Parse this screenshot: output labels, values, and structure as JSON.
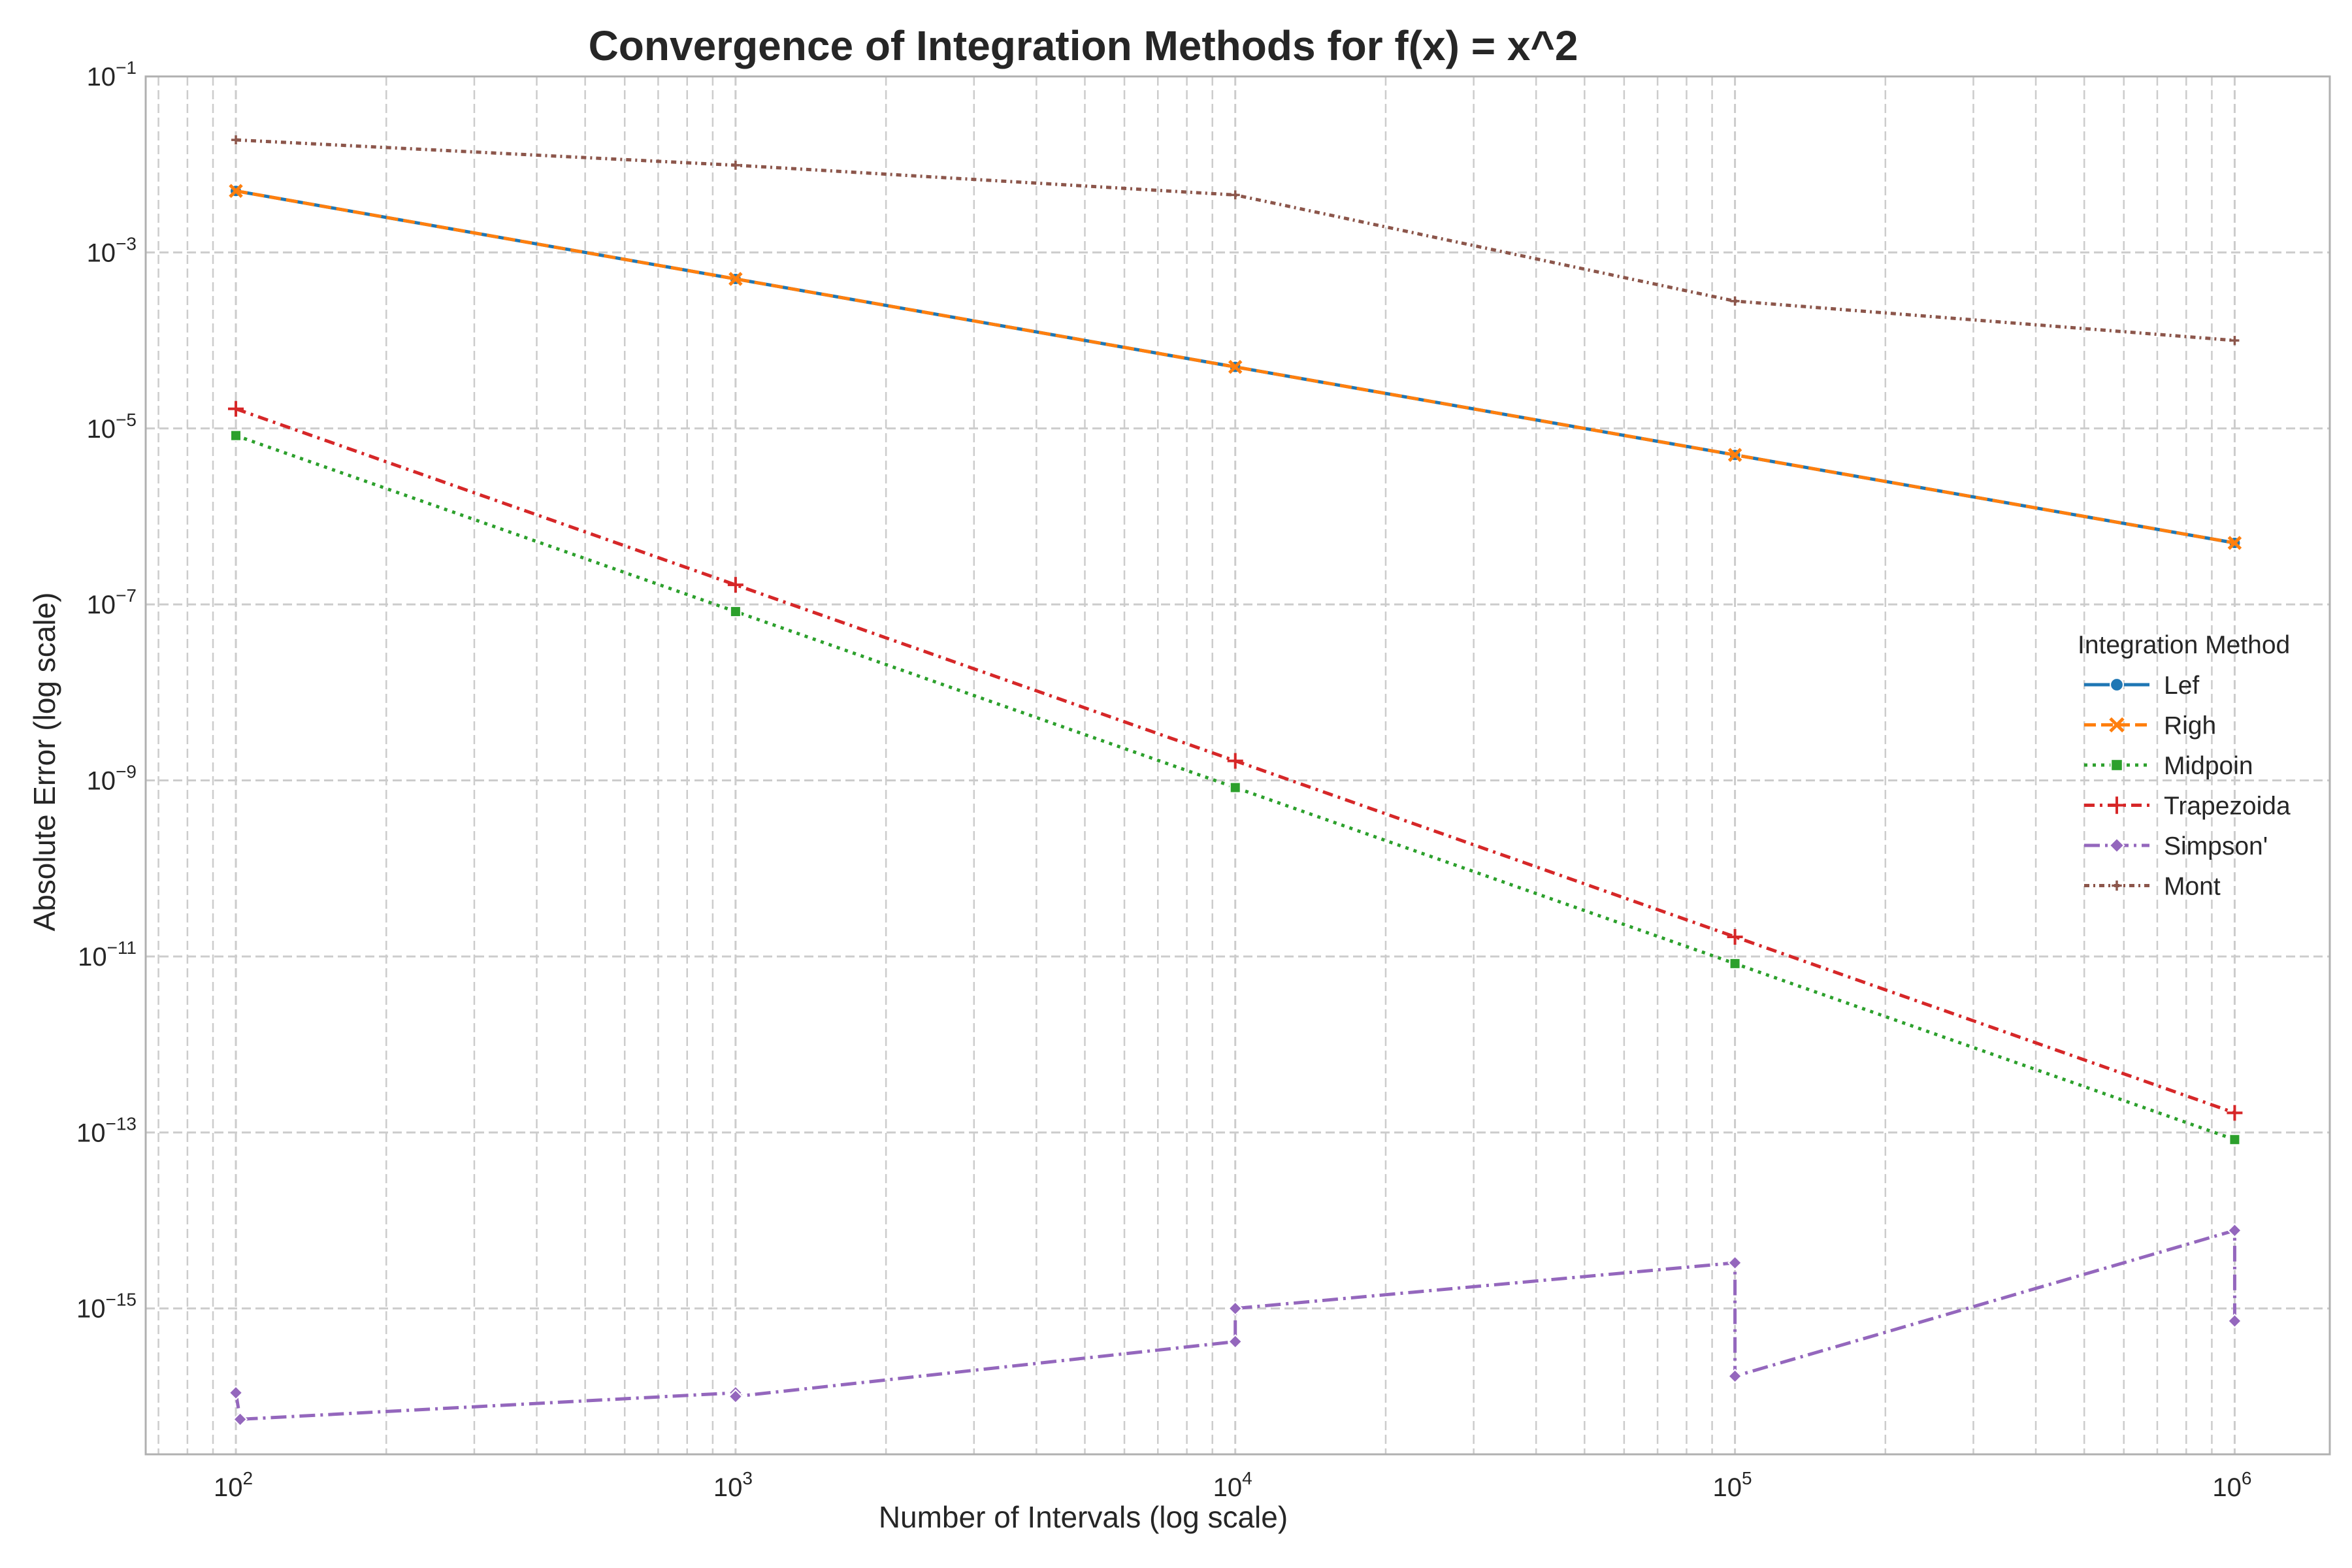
{
  "chart_data": {
    "type": "line",
    "title": "Convergence of Integration Methods for f(x) = x^2",
    "xlabel": "Number of Intervals (log scale)",
    "ylabel": "Absolute Error (log scale)",
    "x_scale": "log",
    "y_scale": "log",
    "xlim": [
      66,
      1550000
    ],
    "ylim": [
      2.2e-17,
      0.1
    ],
    "x_ticks": [
      {
        "value": 100,
        "base": "10",
        "exp": "2"
      },
      {
        "value": 1000,
        "base": "10",
        "exp": "3"
      },
      {
        "value": 10000,
        "base": "10",
        "exp": "4"
      },
      {
        "value": 100000,
        "base": "10",
        "exp": "5"
      },
      {
        "value": 1000000,
        "base": "10",
        "exp": "6"
      }
    ],
    "y_ticks": [
      {
        "value": 1e-15,
        "base": "10",
        "exp": "−15"
      },
      {
        "value": 1e-13,
        "base": "10",
        "exp": "−13"
      },
      {
        "value": 1e-11,
        "base": "10",
        "exp": "−11"
      },
      {
        "value": 1e-09,
        "base": "10",
        "exp": "−9"
      },
      {
        "value": 1e-07,
        "base": "10",
        "exp": "−7"
      },
      {
        "value": 1e-05,
        "base": "10",
        "exp": "−5"
      },
      {
        "value": 0.001,
        "base": "10",
        "exp": "−3"
      },
      {
        "value": 0.1,
        "base": "10",
        "exp": "−1"
      }
    ],
    "grid": true,
    "legend": {
      "title": "Integration Method",
      "position": "center-right"
    },
    "series": [
      {
        "name": "Lef",
        "color": "#1f77b4",
        "dash": "solid",
        "marker": "circle",
        "points": [
          [
            100,
            0.005
          ],
          [
            1000,
            0.0005
          ],
          [
            10000,
            5e-05
          ],
          [
            100000,
            5e-06
          ],
          [
            1000000,
            5e-07
          ]
        ]
      },
      {
        "name": "Righ",
        "color": "#ff7f0e",
        "dash": "dashed",
        "marker": "x",
        "points": [
          [
            100,
            0.005
          ],
          [
            1000,
            0.0005
          ],
          [
            10000,
            5e-05
          ],
          [
            100000,
            5e-06
          ],
          [
            1000000,
            5e-07
          ]
        ]
      },
      {
        "name": "Midpoin",
        "color": "#2ca02c",
        "dash": "dotted",
        "marker": "square",
        "points": [
          [
            100,
            8.3e-06
          ],
          [
            1000,
            8.3e-08
          ],
          [
            10000,
            8.3e-10
          ],
          [
            100000,
            8.3e-12
          ],
          [
            1000000,
            8.3e-14
          ]
        ]
      },
      {
        "name": "Trapezoida",
        "color": "#d62728",
        "dash": "dashdot",
        "marker": "plus",
        "points": [
          [
            100,
            1.67e-05
          ],
          [
            1000,
            1.67e-07
          ],
          [
            10000,
            1.67e-09
          ],
          [
            100000,
            1.67e-11
          ],
          [
            1000000,
            1.67e-13
          ]
        ]
      },
      {
        "name": "Simpson'",
        "color": "#9467bd",
        "dash": "longdashdot",
        "marker": "diamond",
        "points": [
          [
            100,
            1.1e-16
          ],
          [
            102,
            5.5e-17
          ],
          [
            1000,
            1.1e-16
          ],
          [
            1000,
            1e-16
          ],
          [
            10000,
            4.2e-16
          ],
          [
            10000,
            1e-15
          ],
          [
            100000,
            3.3e-15
          ],
          [
            100000,
            1.7e-16
          ],
          [
            1000000,
            7.7e-15
          ],
          [
            1000000,
            7.2e-16
          ]
        ]
      },
      {
        "name": "Mont",
        "color": "#8c564b",
        "dash": "denseDashDot",
        "marker": "smallplus",
        "points": [
          [
            100,
            0.019
          ],
          [
            1000,
            0.0098
          ],
          [
            10000,
            0.0045
          ],
          [
            100000,
            0.00028
          ],
          [
            1000000,
            0.0001
          ]
        ]
      }
    ]
  }
}
